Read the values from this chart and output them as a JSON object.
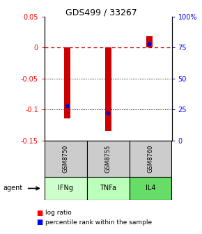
{
  "title": "GDS499 / 33267",
  "samples": [
    "GSM8750",
    "GSM8755",
    "GSM8760"
  ],
  "agents": [
    "IFNg",
    "TNFa",
    "IL4"
  ],
  "log_ratios": [
    -0.115,
    -0.135,
    0.018
  ],
  "percentile_ranks": [
    28,
    22,
    78
  ],
  "bar_color": "#cc0000",
  "dot_color": "#0000cc",
  "ylim_left": [
    -0.15,
    0.05
  ],
  "ylim_right": [
    0,
    100
  ],
  "yticks_left": [
    0.05,
    0.0,
    -0.05,
    -0.1,
    -0.15
  ],
  "yticks_right": [
    100,
    75,
    50,
    25,
    0
  ],
  "zero_line_color": "#cc0000",
  "agent_colors": [
    "#ccffcc",
    "#bbffbb",
    "#66dd66"
  ],
  "sample_bg_color": "#cccccc",
  "bar_width": 0.15
}
